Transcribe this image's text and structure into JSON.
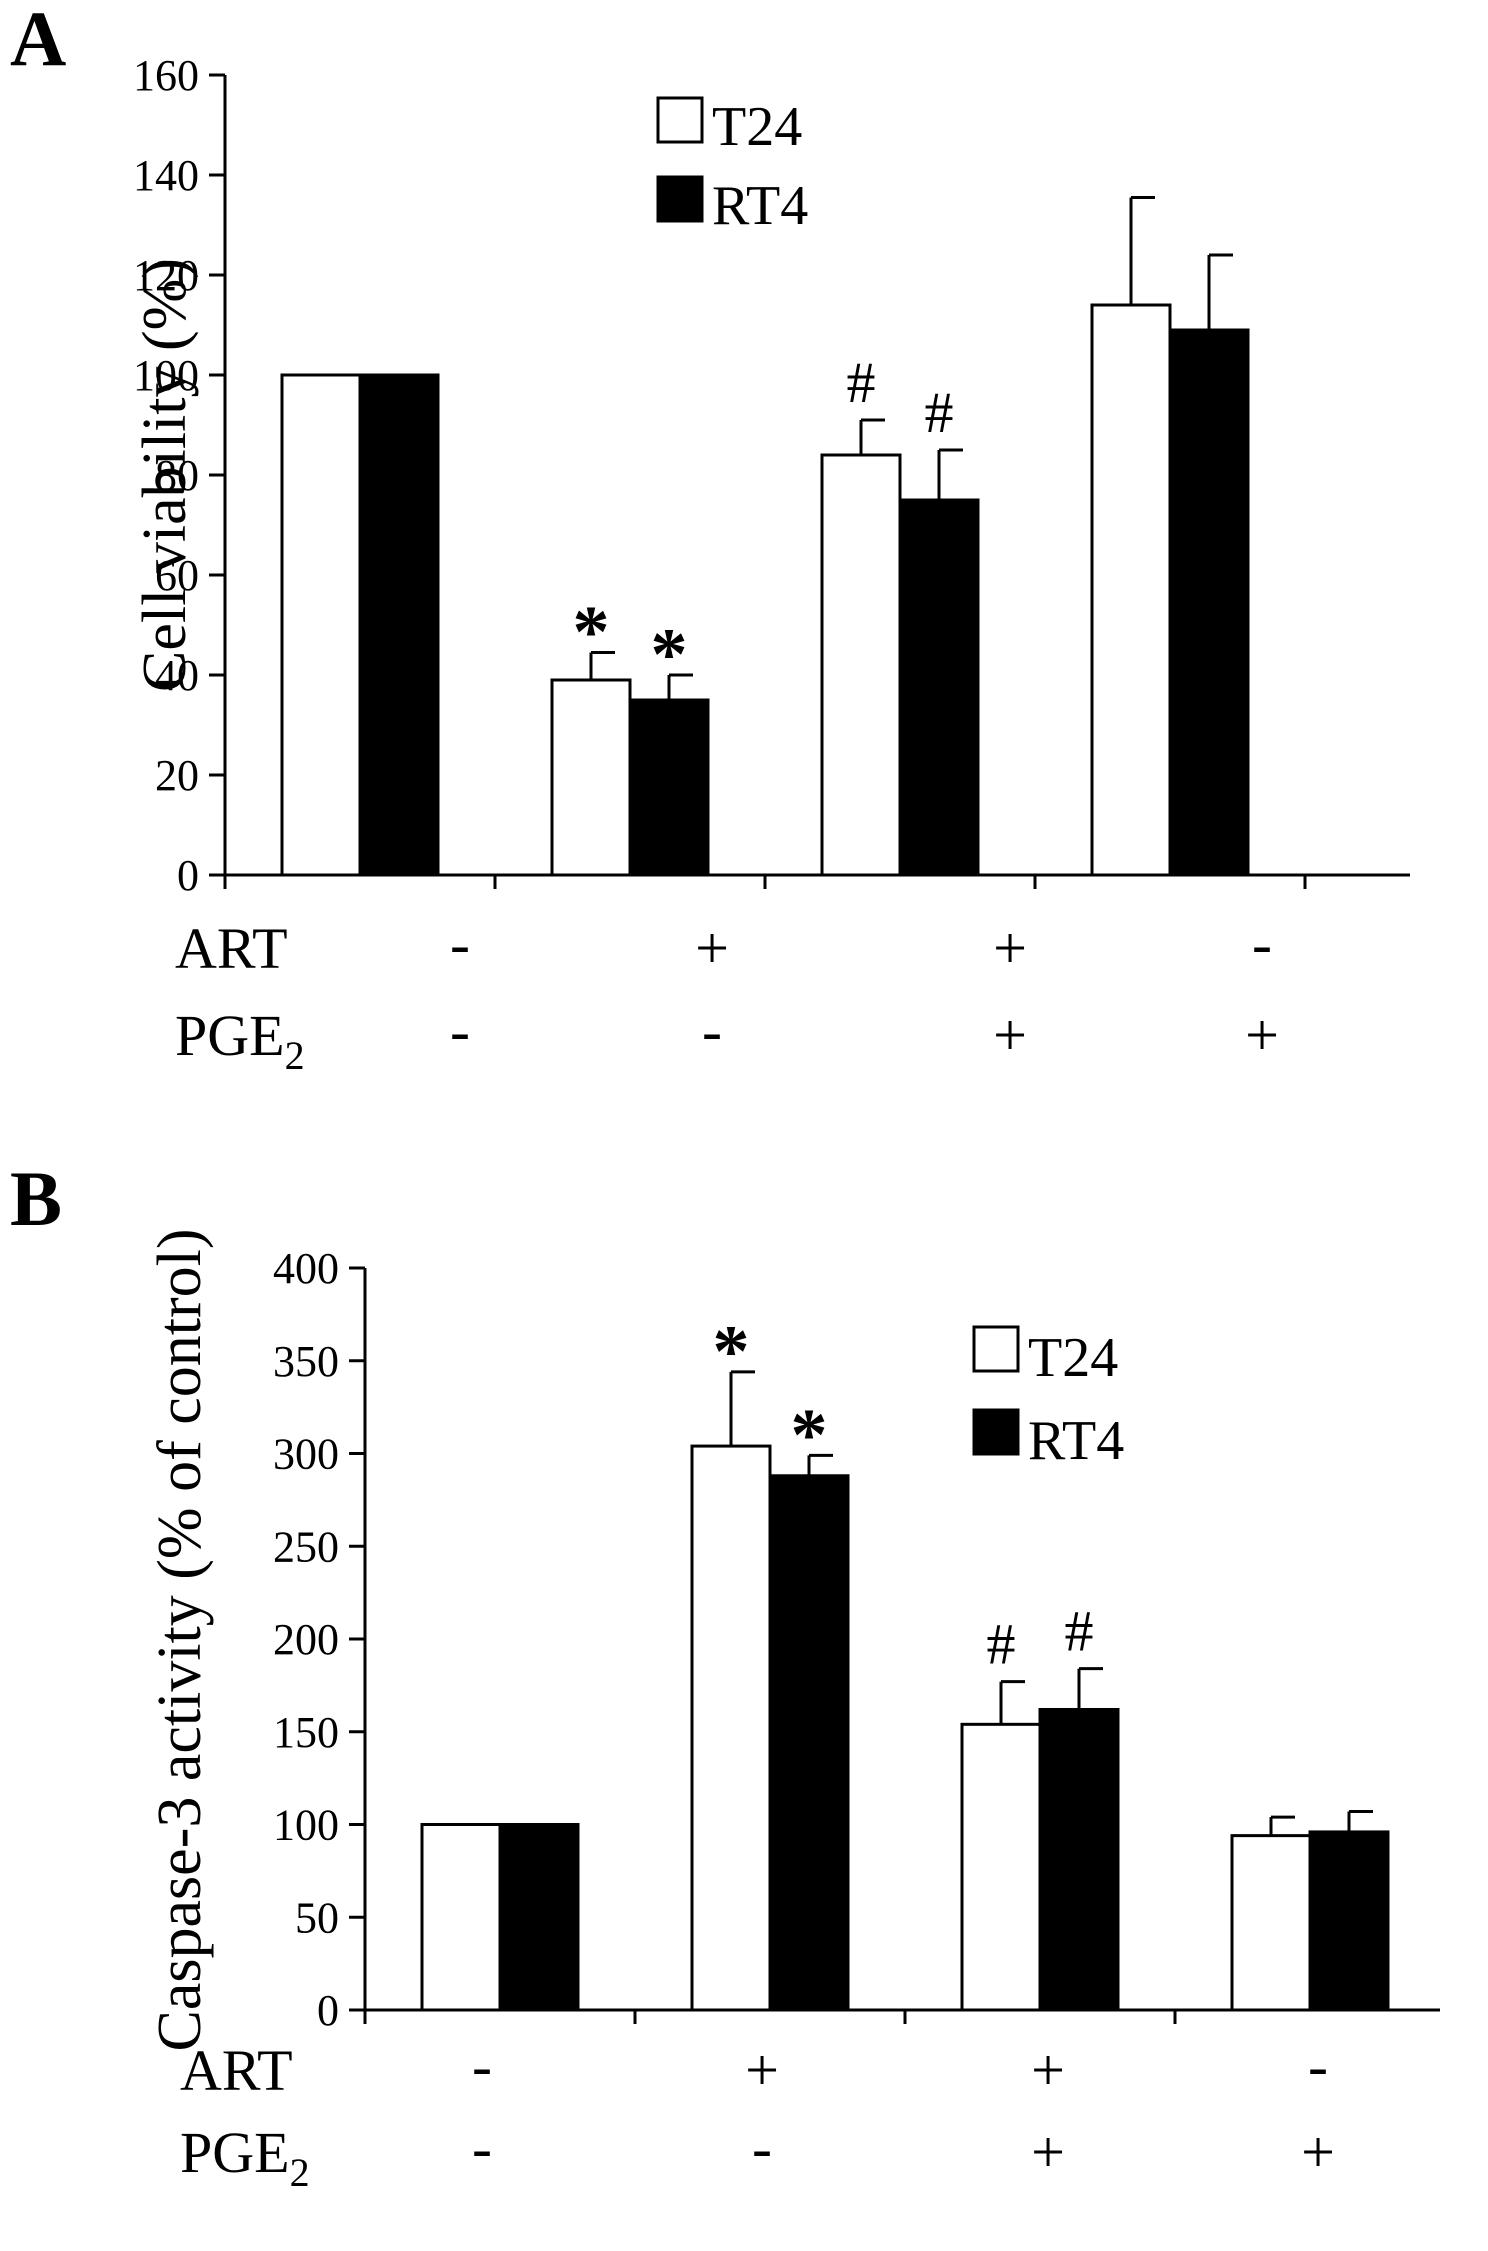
{
  "chart_data": [
    {
      "type": "bar",
      "panel_label": "A",
      "ylabel": "Cell viability (%)",
      "ylim": [
        0,
        160
      ],
      "yticks": [
        0,
        20,
        40,
        60,
        80,
        100,
        120,
        140,
        160
      ],
      "legend": {
        "placement": "top-center",
        "entries": [
          "T24",
          "RT4"
        ]
      },
      "series": [
        {
          "name": "T24",
          "color": "#ffffff",
          "values": [
            100,
            39,
            84,
            114
          ],
          "errors": [
            0,
            5.5,
            7,
            21.5
          ]
        },
        {
          "name": "RT4",
          "color": "#000000",
          "values": [
            100,
            35,
            75,
            109
          ],
          "errors": [
            0,
            5,
            10,
            15
          ]
        }
      ],
      "markers": [
        [
          "",
          ""
        ],
        [
          "*",
          "*"
        ],
        [
          "#",
          "#"
        ],
        [
          "",
          ""
        ]
      ],
      "treatments": [
        {
          "name": "ART",
          "values": [
            "-",
            "+",
            "+",
            "-"
          ]
        },
        {
          "name": "PGE",
          "subscript": "2",
          "values": [
            "-",
            "-",
            "+",
            "+"
          ]
        }
      ]
    },
    {
      "type": "bar",
      "panel_label": "B",
      "ylabel": "Caspase-3 activity (% of control)",
      "ylim": [
        0,
        400
      ],
      "yticks": [
        0,
        50,
        100,
        150,
        200,
        250,
        300,
        350,
        400
      ],
      "legend": {
        "placement": "top-right",
        "entries": [
          "T24",
          "RT4"
        ]
      },
      "series": [
        {
          "name": "T24",
          "color": "#ffffff",
          "values": [
            100,
            304,
            154,
            94
          ],
          "errors": [
            0,
            40,
            23,
            10
          ]
        },
        {
          "name": "RT4",
          "color": "#000000",
          "values": [
            100,
            288,
            162,
            96
          ],
          "errors": [
            0,
            11,
            22,
            11
          ]
        }
      ],
      "markers": [
        [
          "",
          ""
        ],
        [
          "*",
          "*"
        ],
        [
          "#",
          "#"
        ],
        [
          "",
          ""
        ]
      ],
      "treatments": [
        {
          "name": "ART",
          "values": [
            "-",
            "+",
            "+",
            "-"
          ]
        },
        {
          "name": "PGE",
          "subscript": "2",
          "values": [
            "-",
            "-",
            "+",
            "+"
          ]
        }
      ]
    }
  ]
}
